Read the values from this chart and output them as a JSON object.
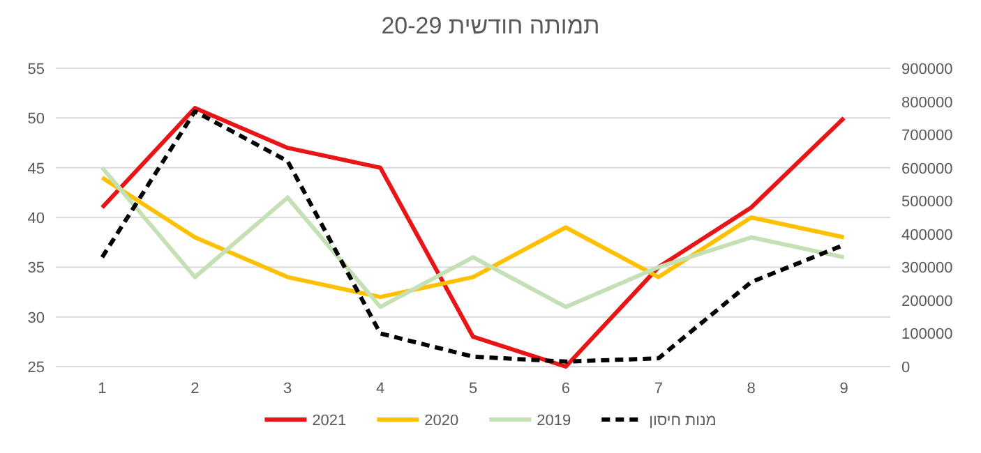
{
  "chart_data": {
    "type": "line",
    "title": "תמותה חודשית 20-29",
    "categories": [
      "1",
      "2",
      "3",
      "4",
      "5",
      "6",
      "7",
      "8",
      "9"
    ],
    "series": [
      {
        "name": "2021",
        "color": "#e81416",
        "values": [
          41,
          51,
          47,
          45,
          28,
          25,
          35,
          41,
          50
        ]
      },
      {
        "name": "2020",
        "color": "#ffc000",
        "values": [
          44,
          38,
          34,
          32,
          34,
          39,
          34,
          40,
          38
        ]
      },
      {
        "name": "2019",
        "color": "#c5e0b4",
        "values": [
          45,
          34,
          42,
          31,
          36,
          31,
          35,
          38,
          36
        ]
      },
      {
        "name": "מנות חיסון",
        "color": "#000000",
        "axis": "y2",
        "line_style": "dashed",
        "values": [
          330000,
          770000,
          620000,
          100000,
          30000,
          15000,
          25000,
          255000,
          367000
        ]
      }
    ],
    "ylim": [
      25,
      55
    ],
    "yticks": [
      25,
      30,
      35,
      40,
      45,
      50,
      55
    ],
    "y2lim": [
      0,
      900000
    ],
    "y2ticks": [
      0,
      100000,
      200000,
      300000,
      400000,
      500000,
      600000,
      700000,
      800000,
      900000
    ],
    "grid": "y",
    "legend": "bottom",
    "marker": "none",
    "line_style": "solid"
  }
}
